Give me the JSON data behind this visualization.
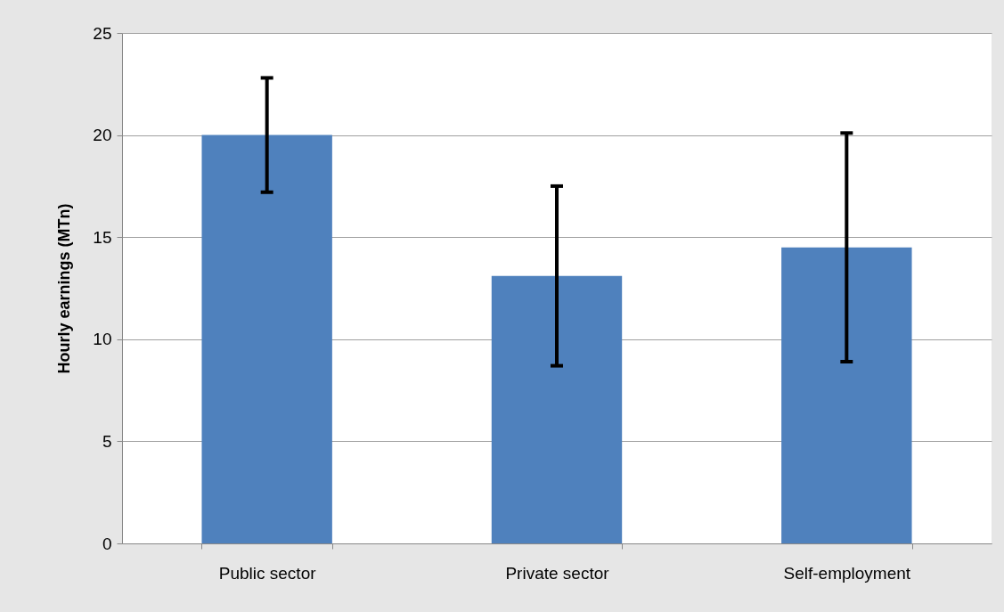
{
  "chart_data": {
    "type": "bar",
    "ylabel": "Hourly earnings (MTn)",
    "categories": [
      "Public sector",
      "Private sector",
      "Self-employment"
    ],
    "values": [
      20,
      13.1,
      14.5
    ],
    "errors": [
      2.8,
      4.4,
      5.6
    ],
    "color": "#4f81bd",
    "ylim": [
      0,
      25
    ],
    "yticks": [
      0,
      5,
      10,
      15,
      20,
      25
    ],
    "grid": "y"
  }
}
